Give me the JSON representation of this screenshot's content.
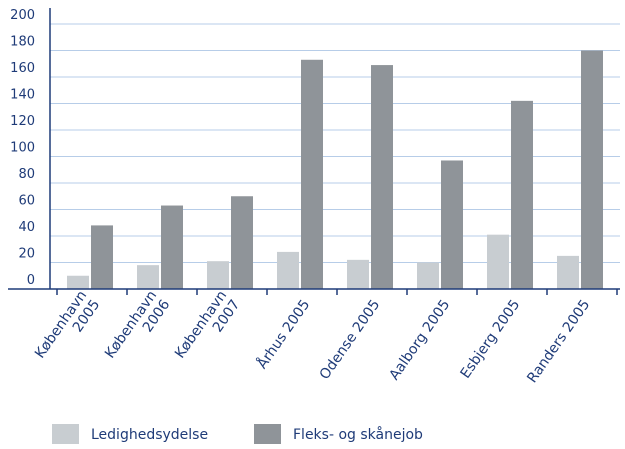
{
  "colors": {
    "axis": "#1f3b78",
    "grid": "#b7cde8",
    "series_1": "#c8cdd1",
    "series_2": "#8f9499"
  },
  "chart_data": {
    "type": "bar",
    "categories": [
      [
        "København",
        "2005"
      ],
      [
        "København",
        "2006"
      ],
      [
        "København",
        "2007"
      ],
      [
        "Århus 2005"
      ],
      [
        "Odense 2005"
      ],
      [
        "Aalborg 2005"
      ],
      [
        "Esbjerg 2005"
      ],
      [
        "Randers 2005"
      ]
    ],
    "series": [
      {
        "name": "Ledighedsydelse",
        "values": [
          10,
          18,
          21,
          28,
          22,
          20,
          41,
          25
        ]
      },
      {
        "name": "Fleks- og skånejob",
        "values": [
          48,
          63,
          70,
          173,
          169,
          97,
          142,
          180
        ]
      }
    ],
    "ylim": [
      0,
      200
    ],
    "yticks": [
      0,
      20,
      40,
      60,
      80,
      100,
      120,
      140,
      160,
      180,
      200
    ],
    "grid": true,
    "legend": "bottom-left",
    "title": "",
    "xlabel": "",
    "ylabel": ""
  }
}
